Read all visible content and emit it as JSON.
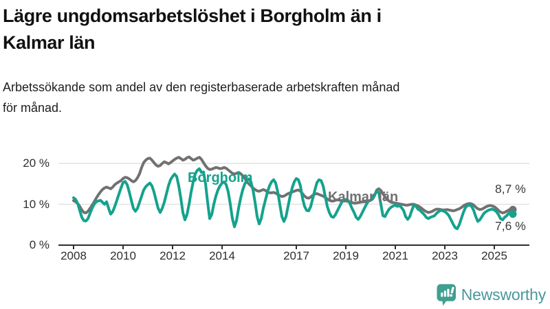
{
  "header": {
    "title_lines": [
      "Lägre ungdomsarbetslöshet i Borgholm än i",
      "Kalmar län"
    ],
    "subtitle_lines": [
      "Arbetssökande som andel av den registerbaserade arbetskraften månad",
      "för månad."
    ]
  },
  "chart_data": {
    "type": "line",
    "unit": "%",
    "frequency": "monthly",
    "x_start": "2008-01",
    "x_end": "2025-10",
    "ylim": [
      0,
      24
    ],
    "grid": "horizontal",
    "legend": "inline-labels",
    "y_ticks": [
      {
        "value": 20,
        "label": "20 %"
      },
      {
        "value": 10,
        "label": "10 %"
      },
      {
        "value": 0,
        "label": "0 %"
      }
    ],
    "x_ticks": [
      {
        "year": 2008,
        "label": "2008"
      },
      {
        "year": 2010,
        "label": "2010"
      },
      {
        "year": 2012,
        "label": "2012"
      },
      {
        "year": 2014,
        "label": "2014"
      },
      {
        "year": 2017,
        "label": "2017"
      },
      {
        "year": 2019,
        "label": "2019"
      },
      {
        "year": 2021,
        "label": "2021"
      },
      {
        "year": 2023,
        "label": "2023"
      },
      {
        "year": 2025,
        "label": "2025"
      }
    ],
    "series": [
      {
        "name": "Kalmar län",
        "color": "#717171",
        "end_label": "8,7 %",
        "values": [
          10.9,
          10.6,
          10.2,
          9.5,
          8.6,
          8.0,
          7.9,
          8.3,
          9.0,
          9.8,
          10.6,
          11.5,
          12.3,
          13.0,
          13.6,
          14.0,
          14.2,
          14.0,
          13.8,
          14.2,
          14.8,
          15.2,
          15.5,
          15.8,
          16.3,
          16.6,
          16.5,
          16.2,
          15.8,
          15.5,
          15.8,
          16.5,
          17.5,
          19.0,
          20.2,
          20.8,
          21.2,
          21.3,
          20.8,
          20.2,
          19.6,
          19.3,
          19.5,
          20.0,
          20.4,
          20.2,
          19.9,
          20.2,
          20.6,
          21.0,
          21.3,
          21.5,
          21.2,
          20.8,
          21.0,
          21.4,
          21.6,
          21.2,
          20.8,
          21.0,
          21.3,
          21.5,
          21.0,
          20.2,
          19.4,
          18.8,
          18.5,
          18.6,
          18.8,
          19.0,
          18.9,
          18.7,
          18.8,
          19.0,
          18.8,
          18.4,
          18.0,
          17.6,
          17.4,
          17.6,
          17.8,
          17.5,
          17.0,
          16.4,
          15.5,
          15.0,
          14.5,
          14.0,
          13.6,
          13.3,
          13.2,
          13.4,
          13.6,
          13.4,
          13.0,
          12.8,
          12.8,
          12.9,
          12.7,
          12.4,
          12.1,
          11.9,
          12.0,
          12.3,
          12.6,
          12.8,
          13.0,
          13.2,
          13.4,
          13.5,
          13.2,
          12.6,
          12.0,
          11.6,
          11.5,
          11.8,
          12.2,
          12.5,
          12.6,
          12.4,
          12.2,
          12.0,
          11.7,
          11.3,
          11.0,
          10.8,
          10.8,
          11.0,
          11.1,
          11.0,
          10.9,
          10.8,
          10.8,
          10.7,
          10.6,
          10.4,
          10.3,
          10.3,
          10.4,
          10.5,
          10.6,
          10.6,
          10.7,
          10.8,
          11.0,
          11.3,
          12.2,
          13.5,
          13.8,
          13.4,
          12.6,
          11.8,
          11.2,
          10.8,
          10.5,
          10.4,
          10.3,
          10.2,
          10.1,
          10.0,
          9.9,
          9.8,
          9.8,
          9.9,
          10.0,
          10.0,
          9.8,
          9.6,
          9.3,
          8.9,
          8.5,
          8.2,
          8.0,
          8.1,
          8.3,
          8.6,
          8.8,
          8.8,
          8.7,
          8.6,
          8.6,
          8.7,
          8.6,
          8.5,
          8.4,
          8.5,
          8.7,
          8.9,
          9.2,
          9.6,
          9.9,
          10.1,
          10.2,
          10.1,
          9.8,
          9.3,
          8.9,
          8.7,
          8.8,
          9.1,
          9.4,
          9.6,
          9.7,
          9.6,
          9.4,
          9.0,
          8.5,
          8.1,
          7.9,
          8.0,
          8.3,
          8.6,
          8.8,
          8.7
        ]
      },
      {
        "name": "Borgholm",
        "color": "#14a28d",
        "end_label": "7,6 %",
        "values": [
          11.6,
          11.2,
          10.2,
          8.5,
          6.8,
          6.0,
          5.9,
          6.5,
          7.8,
          9.0,
          10.0,
          10.6,
          10.8,
          11.0,
          10.5,
          10.0,
          10.6,
          9.0,
          7.6,
          8.2,
          9.5,
          11.0,
          12.5,
          14.0,
          15.3,
          15.6,
          14.8,
          13.0,
          11.0,
          9.0,
          8.3,
          9.0,
          10.5,
          12.0,
          13.5,
          14.3,
          14.8,
          15.2,
          14.5,
          13.0,
          11.0,
          9.0,
          8.0,
          9.0,
          10.5,
          12.5,
          14.5,
          16.0,
          16.8,
          17.4,
          16.8,
          14.5,
          11.5,
          8.0,
          6.2,
          7.5,
          10.0,
          13.0,
          15.5,
          17.5,
          18.3,
          18.7,
          17.8,
          17.9,
          15.0,
          10.5,
          6.5,
          7.5,
          10.0,
          12.0,
          13.5,
          14.5,
          15.2,
          15.5,
          14.8,
          13.0,
          10.0,
          6.5,
          4.5,
          6.0,
          9.0,
          11.5,
          13.5,
          15.0,
          15.8,
          16.2,
          15.5,
          13.5,
          10.5,
          7.0,
          5.2,
          6.5,
          9.0,
          11.0,
          13.0,
          14.5,
          15.5,
          16.0,
          15.2,
          13.0,
          10.0,
          7.0,
          5.8,
          7.0,
          9.5,
          12.0,
          14.0,
          15.5,
          16.3,
          16.0,
          14.5,
          11.5,
          9.5,
          8.5,
          8.4,
          9.5,
          11.5,
          13.5,
          15.3,
          16.0,
          15.8,
          14.5,
          12.0,
          9.5,
          8.0,
          7.0,
          6.8,
          7.5,
          8.5,
          9.5,
          10.5,
          11.0,
          11.2,
          11.0,
          10.2,
          9.0,
          8.0,
          6.8,
          6.3,
          7.0,
          8.0,
          9.0,
          10.0,
          10.8,
          11.0,
          11.5,
          12.3,
          13.3,
          12.8,
          10.0,
          7.2,
          7.0,
          8.0,
          8.8,
          9.3,
          9.6,
          9.8,
          9.5,
          9.7,
          9.2,
          8.5,
          7.0,
          6.3,
          7.0,
          8.5,
          9.8,
          9.5,
          8.8,
          8.5,
          8.0,
          7.5,
          6.8,
          6.5,
          6.8,
          7.0,
          7.2,
          7.8,
          8.2,
          8.5,
          8.4,
          8.2,
          7.8,
          7.2,
          6.2,
          5.2,
          4.3,
          4.0,
          5.0,
          6.5,
          8.0,
          9.2,
          9.7,
          9.8,
          9.5,
          8.5,
          7.0,
          5.8,
          6.2,
          7.0,
          7.8,
          8.2,
          8.5,
          8.7,
          8.8,
          8.6,
          8.2,
          7.5,
          6.5,
          6.2,
          6.8,
          7.2,
          7.8,
          8.2,
          7.6
        ]
      }
    ]
  },
  "footer": {
    "brand": "Newsworthy",
    "brand_color": "#4a989c",
    "icon": "newsworthy-bubble-chart-icon",
    "icon_color": "#3f9f90"
  }
}
